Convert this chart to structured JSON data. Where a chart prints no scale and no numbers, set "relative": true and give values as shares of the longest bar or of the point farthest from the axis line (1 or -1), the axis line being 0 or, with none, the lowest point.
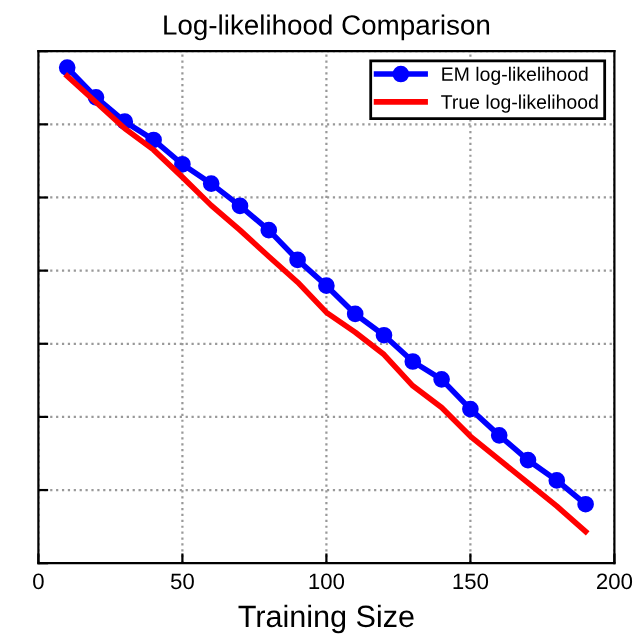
{
  "chart_data": {
    "type": "line",
    "title": "Log-likelihood Comparison",
    "xlabel": "Training Size",
    "relative": true,
    "x": [
      10,
      20,
      30,
      40,
      50,
      60,
      70,
      80,
      90,
      100,
      110,
      120,
      130,
      140,
      150,
      160,
      170,
      180,
      190
    ],
    "series": [
      {
        "name": "EM log-likelihood",
        "color": "#0000ff",
        "marker": "circle",
        "values": [
          1,
          0.94,
          0.891,
          0.854,
          0.805,
          0.766,
          0.721,
          0.672,
          0.612,
          0.56,
          0.503,
          0.46,
          0.407,
          0.371,
          0.311,
          0.258,
          0.208,
          0.167,
          0.119
        ]
      },
      {
        "name": "True log-likelihood",
        "color": "#ff0000",
        "marker": "none",
        "values": [
          0.983,
          0.93,
          0.877,
          0.834,
          0.779,
          0.722,
          0.672,
          0.619,
          0.567,
          0.506,
          0.466,
          0.421,
          0.358,
          0.314,
          0.256,
          0.209,
          0.162,
          0.115,
          0.064
        ]
      }
    ],
    "xlim": [
      0,
      200
    ],
    "xticks": [
      0,
      50,
      100,
      150,
      200
    ],
    "grid": true,
    "legend": "top right",
    "tick_labels": "x",
    "line_style": "solid"
  }
}
